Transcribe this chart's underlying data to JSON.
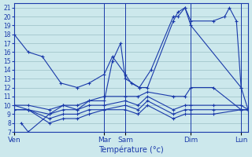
{
  "xlabel": "Température (°c)",
  "bg_color": "#cce8ec",
  "grid_color": "#9bbfc4",
  "line_color": "#1a3aaa",
  "ylim": [
    7,
    21.5
  ],
  "yticks": [
    7,
    8,
    9,
    10,
    11,
    12,
    13,
    14,
    15,
    16,
    17,
    18,
    19,
    20,
    21
  ],
  "xlim": [
    0,
    1
  ],
  "x_tick_labels": [
    "Ven",
    "Mar",
    "Sam",
    "Dim",
    "Lun"
  ],
  "x_tick_positions": [
    0.0,
    0.385,
    0.475,
    0.755,
    0.97
  ],
  "vlines": [
    0.0,
    0.385,
    0.475,
    0.755,
    0.97
  ],
  "lines": [
    [
      0.0,
      18.0,
      0.06,
      16.0,
      0.12,
      15.5,
      0.2,
      12.5,
      0.27,
      12.0,
      0.32,
      12.5,
      0.385,
      13.5,
      0.42,
      15.5,
      0.475,
      13.5,
      0.5,
      12.5,
      0.535,
      12.0,
      0.57,
      12.0,
      0.68,
      19.5,
      0.7,
      20.5,
      0.73,
      21.0,
      0.755,
      19.5,
      0.85,
      19.5,
      0.9,
      20.0,
      0.92,
      21.0,
      0.95,
      19.5,
      0.97,
      12.0,
      1.0,
      9.5
    ],
    [
      0.0,
      10.0,
      0.06,
      9.5,
      0.15,
      8.0,
      0.21,
      8.5,
      0.27,
      8.5,
      0.32,
      9.0,
      0.385,
      9.5,
      0.475,
      9.5,
      0.53,
      9.0,
      0.57,
      10.0,
      0.68,
      8.5,
      0.73,
      9.0,
      0.755,
      9.0,
      0.85,
      9.0,
      0.97,
      9.5,
      1.0,
      9.5
    ],
    [
      0.0,
      9.5,
      0.06,
      9.5,
      0.15,
      8.5,
      0.21,
      9.0,
      0.27,
      9.0,
      0.32,
      9.5,
      0.385,
      9.5,
      0.475,
      10.0,
      0.53,
      9.5,
      0.57,
      10.5,
      0.68,
      9.0,
      0.73,
      9.5,
      0.755,
      9.5,
      0.85,
      9.5,
      0.97,
      9.5,
      1.0,
      9.5
    ],
    [
      0.0,
      9.5,
      0.06,
      9.5,
      0.15,
      9.0,
      0.21,
      9.5,
      0.27,
      9.5,
      0.32,
      10.0,
      0.385,
      10.0,
      0.475,
      10.5,
      0.53,
      10.0,
      0.57,
      11.0,
      0.68,
      9.5,
      0.73,
      10.0,
      0.755,
      10.0,
      0.85,
      10.0,
      0.97,
      10.0,
      1.0,
      9.5
    ],
    [
      0.0,
      10.0,
      0.06,
      10.0,
      0.15,
      9.5,
      0.21,
      10.0,
      0.27,
      10.0,
      0.32,
      10.5,
      0.385,
      11.0,
      0.475,
      11.0,
      0.53,
      11.0,
      0.57,
      11.5,
      0.68,
      11.0,
      0.73,
      11.0,
      0.755,
      12.0,
      0.85,
      12.0,
      0.97,
      9.5,
      1.0,
      9.5
    ],
    [
      0.03,
      8.0,
      0.06,
      7.0,
      0.15,
      9.0,
      0.21,
      10.0,
      0.27,
      9.5,
      0.32,
      10.5,
      0.385,
      10.5,
      0.42,
      15.0,
      0.455,
      17.0,
      0.475,
      13.0,
      0.535,
      12.0,
      0.585,
      14.0,
      0.68,
      20.0,
      0.7,
      20.0,
      0.73,
      21.0,
      0.755,
      19.0,
      0.97,
      12.0
    ]
  ]
}
